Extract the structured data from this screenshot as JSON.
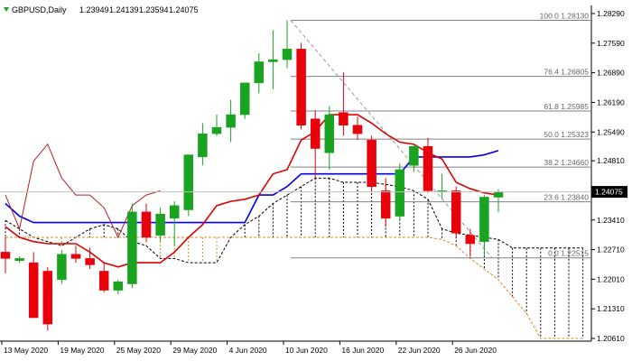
{
  "header": {
    "symbol": "GBPUSD,Daily",
    "open": "1.23949",
    "high": "1.24139",
    "low": "1.23594",
    "close": "1.24075"
  },
  "colors": {
    "bull": "#1aa321",
    "bear": "#e8000b",
    "kijun": "#0000ee",
    "tenkan": "#dd0000",
    "lagging": "#b22222",
    "kumo": "#000000",
    "fib": "#808080",
    "trend": "#999999",
    "price_bg": "#000000",
    "senkou_b_orange": "#d98b2a"
  },
  "chart_data": {
    "type": "candlestick",
    "title": "GBPUSD,Daily",
    "ylim": [
      1.2061,
      1.2829
    ],
    "y_ticks": [
      "1.28290",
      "1.27590",
      "1.26890",
      "1.26190",
      "1.25490",
      "1.24810",
      "1.24100",
      "1.23410",
      "1.22710",
      "1.22010",
      "1.21310",
      "1.20610"
    ],
    "x_labels": [
      "13 May 2020",
      "19 May 2020",
      "25 May 2020",
      "29 May 2020",
      "4 Jun 2020",
      "10 Jun 2020",
      "16 Jun 2020",
      "22 Jun 2020",
      "26 Jun 2020"
    ],
    "last_price": "1.24075",
    "candles": [
      {
        "o": 1.2265,
        "h": 1.23,
        "l": 1.2215,
        "c": 1.225
      },
      {
        "o": 1.2245,
        "h": 1.2255,
        "l": 1.224,
        "c": 1.225
      },
      {
        "o": 1.224,
        "h": 1.2265,
        "l": 1.211,
        "c": 1.211
      },
      {
        "o": 1.222,
        "h": 1.223,
        "l": 1.208,
        "c": 1.2095
      },
      {
        "o": 1.22,
        "h": 1.227,
        "l": 1.219,
        "c": 1.226
      },
      {
        "o": 1.226,
        "h": 1.228,
        "l": 1.224,
        "c": 1.225
      },
      {
        "o": 1.225,
        "h": 1.2275,
        "l": 1.2225,
        "c": 1.2235
      },
      {
        "o": 1.222,
        "h": 1.224,
        "l": 1.217,
        "c": 1.2175
      },
      {
        "o": 1.2175,
        "h": 1.22,
        "l": 1.2165,
        "c": 1.2195
      },
      {
        "o": 1.219,
        "h": 1.238,
        "l": 1.218,
        "c": 1.236
      },
      {
        "o": 1.236,
        "h": 1.238,
        "l": 1.229,
        "c": 1.23
      },
      {
        "o": 1.2305,
        "h": 1.237,
        "l": 1.229,
        "c": 1.2355
      },
      {
        "o": 1.2345,
        "h": 1.2385,
        "l": 1.228,
        "c": 1.2375
      },
      {
        "o": 1.2365,
        "h": 1.249,
        "l": 1.235,
        "c": 1.2495
      },
      {
        "o": 1.249,
        "h": 1.257,
        "l": 1.247,
        "c": 1.2545
      },
      {
        "o": 1.2545,
        "h": 1.259,
        "l": 1.254,
        "c": 1.256
      },
      {
        "o": 1.256,
        "h": 1.2625,
        "l": 1.2525,
        "c": 1.259
      },
      {
        "o": 1.259,
        "h": 1.2665,
        "l": 1.258,
        "c": 1.2665
      },
      {
        "o": 1.2665,
        "h": 1.2735,
        "l": 1.264,
        "c": 1.2715
      },
      {
        "o": 1.2715,
        "h": 1.279,
        "l": 1.265,
        "c": 1.272
      },
      {
        "o": 1.272,
        "h": 1.2813,
        "l": 1.27,
        "c": 1.2745
      },
      {
        "o": 1.2745,
        "h": 1.276,
        "l": 1.2555,
        "c": 1.2565
      },
      {
        "o": 1.258,
        "h": 1.26,
        "l": 1.244,
        "c": 1.251
      },
      {
        "o": 1.25,
        "h": 1.261,
        "l": 1.246,
        "c": 1.259
      },
      {
        "o": 1.2595,
        "h": 1.269,
        "l": 1.254,
        "c": 1.2565
      },
      {
        "o": 1.2565,
        "h": 1.2585,
        "l": 1.253,
        "c": 1.2545
      },
      {
        "o": 1.253,
        "h": 1.254,
        "l": 1.241,
        "c": 1.242
      },
      {
        "o": 1.241,
        "h": 1.244,
        "l": 1.2325,
        "c": 1.2345
      },
      {
        "o": 1.235,
        "h": 1.2475,
        "l": 1.234,
        "c": 1.246
      },
      {
        "o": 1.247,
        "h": 1.252,
        "l": 1.2455,
        "c": 1.2515
      },
      {
        "o": 1.2515,
        "h": 1.2535,
        "l": 1.2405,
        "c": 1.241
      },
      {
        "o": 1.241,
        "h": 1.245,
        "l": 1.239,
        "c": 1.241
      },
      {
        "o": 1.241,
        "h": 1.242,
        "l": 1.23,
        "c": 1.231
      },
      {
        "o": 1.2305,
        "h": 1.232,
        "l": 1.2255,
        "c": 1.2285
      },
      {
        "o": 1.229,
        "h": 1.24,
        "l": 1.2255,
        "c": 1.2395
      },
      {
        "o": 1.23949,
        "h": 1.24139,
        "l": 1.23594,
        "c": 1.24075
      }
    ],
    "tenkan_sen": [
      1.2325,
      1.23,
      1.229,
      1.2285,
      1.2285,
      1.2285,
      1.2265,
      1.224,
      1.223,
      1.224,
      1.224,
      1.224,
      1.2265,
      1.23,
      1.233,
      1.2375,
      1.2385,
      1.239,
      1.24,
      1.245,
      1.246,
      1.253,
      1.255,
      1.259,
      1.259,
      1.259,
      1.257,
      1.2545,
      1.2525,
      1.252,
      1.25,
      1.2485,
      1.243,
      1.2415,
      1.2405,
      1.24
    ],
    "kijun_sen": [
      1.238,
      1.235,
      1.2335,
      1.2335,
      1.2335,
      1.2335,
      1.2335,
      1.2335,
      1.2335,
      1.2335,
      1.2335,
      1.2335,
      1.2335,
      1.2335,
      1.2335,
      1.2335,
      1.2335,
      1.2335,
      1.24,
      1.24,
      1.242,
      1.245,
      1.245,
      1.245,
      1.245,
      1.245,
      1.245,
      1.245,
      1.245,
      1.249,
      1.249,
      1.249,
      1.249,
      1.249,
      1.2495,
      1.2505
    ],
    "chikou_span": [
      1.24,
      1.232,
      1.248,
      1.252,
      1.244,
      1.24,
      1.24,
      1.237,
      1.23,
      1.2375,
      1.24,
      1.241
    ],
    "senkou_span_a": [
      1.234,
      1.232,
      1.23,
      1.229,
      1.228,
      1.23,
      1.232,
      1.233,
      1.232,
      1.229,
      1.228,
      1.225,
      1.225,
      1.224,
      1.224,
      1.224,
      1.23,
      1.233,
      1.235,
      1.238,
      1.24,
      1.242,
      1.244,
      1.244,
      1.243,
      1.243,
      1.243,
      1.2425,
      1.242,
      1.241,
      1.239,
      1.232,
      1.231,
      1.2305,
      1.23,
      1.2295,
      1.2275,
      1.2275,
      1.2275,
      1.2275,
      1.2275,
      1.2275,
      1.23,
      1.233,
      1.235
    ],
    "senkou_span_b": [
      1.23,
      1.23,
      1.23,
      1.23,
      1.23,
      1.23,
      1.23,
      1.23,
      1.23,
      1.23,
      1.23,
      1.23,
      1.23,
      1.23,
      1.23,
      1.23,
      1.23,
      1.23,
      1.23,
      1.23,
      1.23,
      1.23,
      1.23,
      1.23,
      1.23,
      1.23,
      1.23,
      1.23,
      1.23,
      1.23,
      1.23,
      1.2295,
      1.228,
      1.225,
      1.2225,
      1.22,
      1.216,
      1.212,
      1.2061,
      1.2061,
      1.2061,
      1.2061,
      1.2061,
      1.2061,
      1.2061
    ],
    "fibonacci": [
      {
        "label": "100.0 1.28130",
        "price": 1.2813
      },
      {
        "label": "76.4 1.26805",
        "price": 1.26805
      },
      {
        "label": "61.8 1.25985",
        "price": 1.25985
      },
      {
        "label": "50.0 1.25323",
        "price": 1.25323
      },
      {
        "label": "38.2 1.24660",
        "price": 1.2466
      },
      {
        "label": "23.6 1.23840",
        "price": 1.2384
      },
      {
        "label": "0.0 1.22515",
        "price": 1.22515
      }
    ]
  }
}
